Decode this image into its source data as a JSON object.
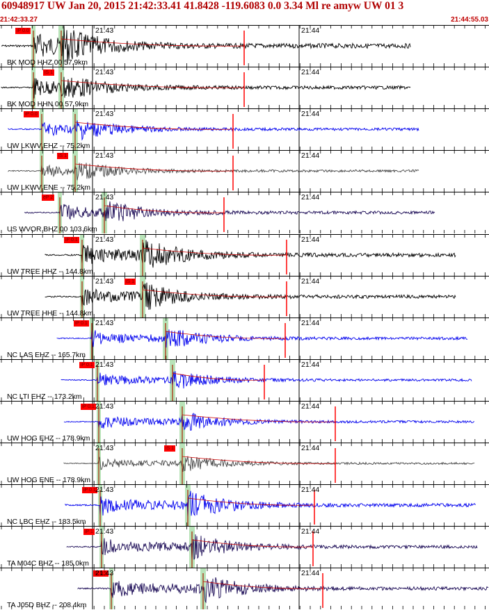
{
  "header": {
    "title": "60948917 UW Jan 20, 2015 21:42:33.41   41.8428 -119.6083  0.0 3.34 Ml re amyw UW 01   3",
    "start_time": "21:42:33.27",
    "end_time": "21:44:55.03"
  },
  "time_marks": [
    "21:43",
    "21:44"
  ],
  "colors": {
    "accent": "#c00000",
    "pick": "#ff0000",
    "phase_band": "#b8e3b8",
    "blue": "#0000ee",
    "black": "#000000",
    "gray": "#444444",
    "navy": "#1a0a55"
  },
  "traces": [
    {
      "label": "BK MOD HHZ 00 57.9km",
      "color": "black",
      "pick": "iP 0.0"
    },
    {
      "label": "BK MOD HHN 00 57.9km",
      "color": "black",
      "pick": "iS 1"
    },
    {
      "label": "UW LKWV EHZ -- 75.2km",
      "color": "blue",
      "pick": "iP 0.0"
    },
    {
      "label": "UW LKWV ENE -- 75.2km",
      "color": "gray",
      "pick": "iS 1"
    },
    {
      "label": "US WVOR BHZ 00 103.6km",
      "color": "navy",
      "pick": "eP 2"
    },
    {
      "label": "UW TREE HHZ -- 144.8km",
      "color": "black",
      "pick": "iP 0.1"
    },
    {
      "label": "UW TREE HHE -- 144.8km",
      "color": "black",
      "pick": "iS 1"
    },
    {
      "label": "NC LAS EHZ -- 165.7km",
      "color": "blue",
      "pick": "iP 0.1"
    },
    {
      "label": "NC LTI EHZ -- 173.2km",
      "color": "blue",
      "pick": "iP 0.1"
    },
    {
      "label": "UW HOG EHZ -- 178.9km",
      "color": "blue",
      "pick": "iP 0.1"
    },
    {
      "label": "UW HOG ENE -- 178.9km",
      "color": "gray",
      "pick": "iS 1"
    },
    {
      "label": "NC LBC EHZ -- 183.5km",
      "color": "blue",
      "pick": "iP 0.1"
    },
    {
      "label": "TA M04C BHZ -- 185.0km",
      "color": "navy",
      "pick": "iP 1"
    },
    {
      "label": "TA J05D BHZ -- 208.4km",
      "color": "navy",
      "pick": "iP 0.1"
    }
  ]
}
